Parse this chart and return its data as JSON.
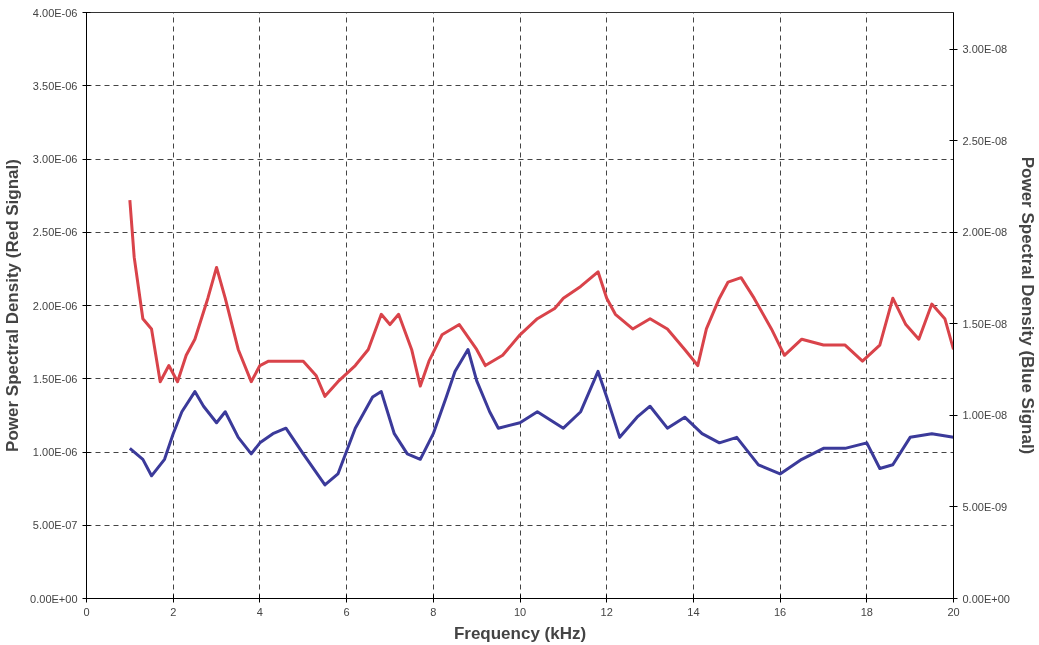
{
  "chart_data": {
    "type": "line",
    "xlabel": "Frequency (kHz)",
    "ylabel": "Power Spectral Density (Red Signal)",
    "y2label": "Power Spectral Density (Blue Signal)",
    "xlim": [
      0,
      20
    ],
    "xticks": [
      0,
      2,
      4,
      6,
      8,
      10,
      12,
      14,
      16,
      18,
      20
    ],
    "ylim": [
      0,
      4e-06
    ],
    "yticks": [
      {
        "value": 0,
        "label": "0.00E+00"
      },
      {
        "value": 5e-07,
        "label": "5.00E-07"
      },
      {
        "value": 1e-06,
        "label": "1.00E-06"
      },
      {
        "value": 1.5e-06,
        "label": "1.50E-06"
      },
      {
        "value": 2e-06,
        "label": "2.00E-06"
      },
      {
        "value": 2.5e-06,
        "label": "2.50E-06"
      },
      {
        "value": 3e-06,
        "label": "3.00E-06"
      },
      {
        "value": 3.5e-06,
        "label": "3.50E-06"
      },
      {
        "value": 4e-06,
        "label": "4.00E-06"
      }
    ],
    "y2lim": [
      0,
      3.2e-08
    ],
    "y2ticks": [
      {
        "value": 0,
        "label": "0.00E+00"
      },
      {
        "value": 5e-09,
        "label": "5.00E-09"
      },
      {
        "value": 1e-08,
        "label": "1.00E-08"
      },
      {
        "value": 1.5e-08,
        "label": "1.50E-08"
      },
      {
        "value": 2e-08,
        "label": "2.00E-08"
      },
      {
        "value": 2.5e-08,
        "label": "2.50E-08"
      },
      {
        "value": 3e-08,
        "label": "3.00E-08"
      }
    ],
    "grid": true,
    "marker": "none",
    "line_style": "solid",
    "series": [
      {
        "color": "#d9434a",
        "x": [
          1.0,
          1.1,
          1.3,
          1.5,
          1.7,
          1.9,
          2.1,
          2.3,
          2.5,
          2.8,
          3.0,
          3.2,
          3.5,
          3.8,
          4.0,
          4.2,
          4.5,
          5.0,
          5.3,
          5.5,
          5.8,
          6.2,
          6.5,
          6.8,
          7.0,
          7.2,
          7.5,
          7.7,
          7.9,
          8.2,
          8.6,
          9.0,
          9.2,
          9.6,
          10.0,
          10.4,
          10.8,
          11.0,
          11.4,
          11.8,
          12.0,
          12.2,
          12.6,
          13.0,
          13.4,
          13.8,
          14.1,
          14.3,
          14.6,
          14.8,
          15.1,
          15.4,
          15.8,
          16.1,
          16.5,
          17.0,
          17.5,
          17.9,
          18.3,
          18.6,
          18.9,
          19.2,
          19.5,
          19.8,
          20.0
        ],
        "values": [
          2.72e-06,
          2.33e-06,
          1.91e-06,
          1.84e-06,
          1.48e-06,
          1.59e-06,
          1.48e-06,
          1.66e-06,
          1.77e-06,
          2.05e-06,
          2.26e-06,
          2.05e-06,
          1.7e-06,
          1.48e-06,
          1.59e-06,
          1.62e-06,
          1.62e-06,
          1.62e-06,
          1.52e-06,
          1.38e-06,
          1.48e-06,
          1.59e-06,
          1.7e-06,
          1.94e-06,
          1.87e-06,
          1.94e-06,
          1.7e-06,
          1.45e-06,
          1.62e-06,
          1.8e-06,
          1.87e-06,
          1.7e-06,
          1.59e-06,
          1.66e-06,
          1.8e-06,
          1.91e-06,
          1.98e-06,
          2.05e-06,
          2.13e-06,
          2.23e-06,
          2.05e-06,
          1.94e-06,
          1.84e-06,
          1.91e-06,
          1.84e-06,
          1.7e-06,
          1.59e-06,
          1.84e-06,
          2.05e-06,
          2.16e-06,
          2.19e-06,
          2.05e-06,
          1.84e-06,
          1.66e-06,
          1.77e-06,
          1.73e-06,
          1.73e-06,
          1.62e-06,
          1.73e-06,
          2.05e-06,
          1.87e-06,
          1.77e-06,
          2.01e-06,
          1.91e-06,
          1.7e-06
        ]
      },
      {
        "color": "#3b3a9a",
        "axis": "y2",
        "x": [
          1.0,
          1.3,
          1.5,
          1.8,
          2.0,
          2.2,
          2.5,
          2.7,
          3.0,
          3.2,
          3.5,
          3.8,
          4.0,
          4.3,
          4.6,
          5.0,
          5.5,
          5.8,
          6.2,
          6.6,
          6.8,
          7.1,
          7.4,
          7.7,
          8.0,
          8.3,
          8.5,
          8.8,
          9.0,
          9.3,
          9.5,
          10.0,
          10.4,
          11.0,
          11.4,
          11.8,
          12.0,
          12.3,
          12.7,
          13.0,
          13.4,
          13.8,
          14.2,
          14.6,
          15.0,
          15.5,
          16.0,
          16.5,
          17.0,
          17.5,
          18.0,
          18.3,
          18.6,
          19.0,
          19.5,
          20.0
        ],
        "values": [
          8.2e-09,
          7.6e-09,
          6.7e-09,
          7.6e-09,
          9e-09,
          1.02e-08,
          1.13e-08,
          1.05e-08,
          9.6e-09,
          1.02e-08,
          8.8e-09,
          7.9e-09,
          8.5e-09,
          9e-09,
          9.3e-09,
          7.9e-09,
          6.2e-09,
          6.8e-09,
          9.3e-09,
          1.1e-08,
          1.13e-08,
          9e-09,
          7.9e-09,
          7.6e-09,
          9e-09,
          1.1e-08,
          1.24e-08,
          1.36e-08,
          1.19e-08,
          1.02e-08,
          9.3e-09,
          9.6e-09,
          1.02e-08,
          9.3e-09,
          1.02e-08,
          1.24e-08,
          1.1e-08,
          8.8e-09,
          9.9e-09,
          1.05e-08,
          9.3e-09,
          9.9e-09,
          9e-09,
          8.5e-09,
          8.8e-09,
          7.3e-09,
          6.8e-09,
          7.6e-09,
          8.2e-09,
          8.2e-09,
          8.5e-09,
          7.1e-09,
          7.3e-09,
          8.8e-09,
          9e-09,
          8.8e-09
        ]
      }
    ]
  }
}
